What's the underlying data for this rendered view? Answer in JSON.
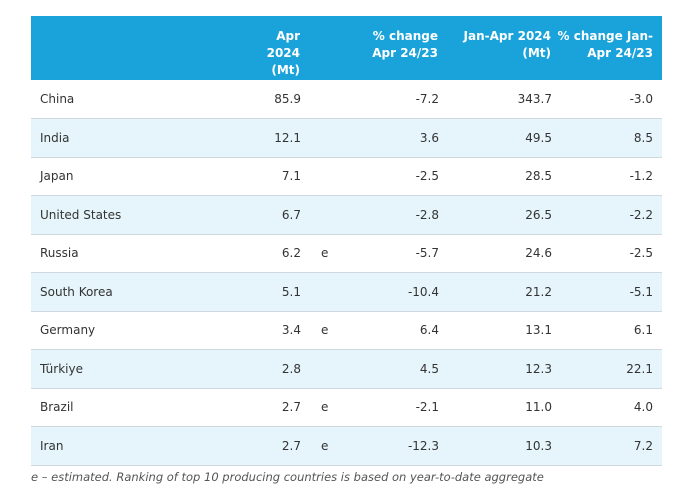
{
  "header": {
    "country": "",
    "apr": "Apr 2024 (Mt)",
    "est": "",
    "chg": "% change Apr 24/23",
    "ytd": "Jan-Apr 2024 (Mt)",
    "ytdchg": "% change Jan-Apr 24/23"
  },
  "rows": [
    {
      "country": "China",
      "apr": "85.9",
      "est": "",
      "chg": "-7.2",
      "ytd": "343.7",
      "ytdchg": "-3.0"
    },
    {
      "country": "India",
      "apr": "12.1",
      "est": "",
      "chg": "3.6",
      "ytd": "49.5",
      "ytdchg": "8.5"
    },
    {
      "country": "Japan",
      "apr": "7.1",
      "est": "",
      "chg": "-2.5",
      "ytd": "28.5",
      "ytdchg": "-1.2"
    },
    {
      "country": "United States",
      "apr": "6.7",
      "est": "",
      "chg": "-2.8",
      "ytd": "26.5",
      "ytdchg": "-2.2"
    },
    {
      "country": "Russia",
      "apr": "6.2",
      "est": "e",
      "chg": "-5.7",
      "ytd": "24.6",
      "ytdchg": "-2.5"
    },
    {
      "country": "South Korea",
      "apr": "5.1",
      "est": "",
      "chg": "-10.4",
      "ytd": "21.2",
      "ytdchg": "-5.1"
    },
    {
      "country": "Germany",
      "apr": "3.4",
      "est": "e",
      "chg": "6.4",
      "ytd": "13.1",
      "ytdchg": "6.1"
    },
    {
      "country": "Türkiye",
      "apr": "2.8",
      "est": "",
      "chg": "4.5",
      "ytd": "12.3",
      "ytdchg": "22.1"
    },
    {
      "country": "Brazil",
      "apr": "2.7",
      "est": "e",
      "chg": "-2.1",
      "ytd": "11.0",
      "ytdchg": "4.0"
    },
    {
      "country": "Iran",
      "apr": "2.7",
      "est": "e",
      "chg": "-12.3",
      "ytd": "10.3",
      "ytdchg": "7.2"
    }
  ],
  "footnote": "e – estimated. Ranking of top 10 producing countries is based on year-to-date aggregate",
  "colors": {
    "header_bg": "#1aa3da",
    "row_alt_bg": "#e5f5fb"
  }
}
